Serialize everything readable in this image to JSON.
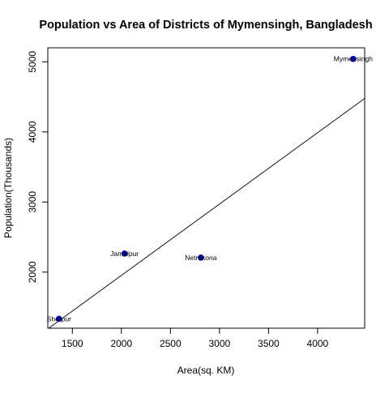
{
  "chart_data": {
    "type": "scatter",
    "title": "Population vs Area of Districts of Mymensingh, Bangladesh",
    "xlabel": "Area(sq. KM)",
    "ylabel": "Population(Thousands)",
    "xlim": [
      1250,
      4480
    ],
    "ylim": [
      1200,
      5200
    ],
    "xticks": [
      1500,
      2000,
      2500,
      3000,
      3500,
      4000
    ],
    "yticks": [
      2000,
      3000,
      4000,
      5000
    ],
    "grid": false,
    "points": [
      {
        "label": "Sherpur",
        "x": 1364,
        "y": 1334
      },
      {
        "label": "Jamalpur",
        "x": 2032,
        "y": 2265
      },
      {
        "label": "Netrokona",
        "x": 2810,
        "y": 2207
      },
      {
        "label": "Mymensingh",
        "x": 4363,
        "y": 5042
      }
    ],
    "trend_line": {
      "type": "linear",
      "intercept": -83,
      "slope": 1.018
    },
    "colors": {
      "point": "#0000cd",
      "line": "#000000"
    }
  }
}
